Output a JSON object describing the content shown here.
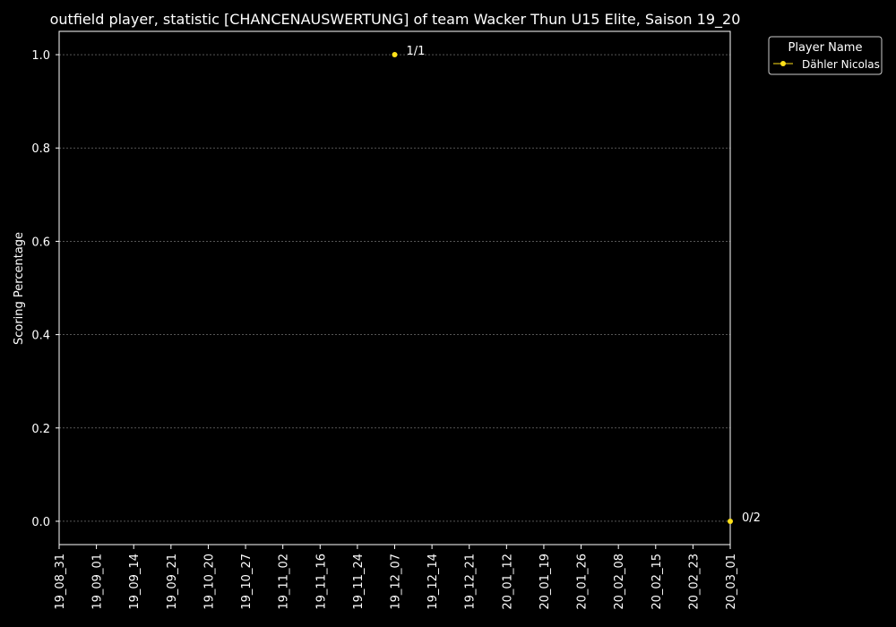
{
  "chart_data": {
    "type": "line",
    "title": "outfield player, statistic [CHANCENAUSWERTUNG] of team Wacker Thun U15 Elite, Saison 19_20",
    "xlabel": "",
    "ylabel": "Scoring Percentage",
    "categories": [
      "19_08_31",
      "19_09_01",
      "19_09_14",
      "19_09_21",
      "19_10_20",
      "19_10_27",
      "19_11_02",
      "19_11_16",
      "19_11_24",
      "19_12_07",
      "19_12_14",
      "19_12_21",
      "20_01_12",
      "20_01_19",
      "20_01_26",
      "20_02_08",
      "20_02_15",
      "20_02_23",
      "20_03_01"
    ],
    "yticks": [
      "0.0",
      "0.2",
      "0.4",
      "0.6",
      "0.8",
      "1.0"
    ],
    "ylim": [
      -0.05,
      1.05
    ],
    "grid": true,
    "legend": {
      "title": "Player Name",
      "position": "upper-right-outside"
    },
    "series": [
      {
        "name": "Dähler Nicolas",
        "color": "#ffe119",
        "points": [
          {
            "x": "19_12_07",
            "y": 1.0,
            "label": "1/1"
          },
          {
            "x": "20_03_01",
            "y": 0.0,
            "label": "0/2"
          }
        ]
      }
    ]
  }
}
